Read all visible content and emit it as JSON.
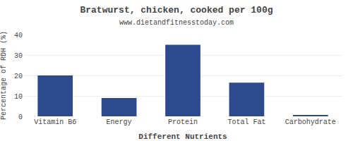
{
  "chart_data": {
    "type": "bar",
    "title": "Bratwurst, chicken, cooked per 100g",
    "subtitle": "www.dietandfitnesstoday.com",
    "xlabel": "Different Nutrients",
    "ylabel": "Percentage of RDH (%)",
    "categories": [
      "Vitamin B6",
      "Energy",
      "Protein",
      "Total Fat",
      "Carbohydrate"
    ],
    "values": [
      20,
      9,
      35,
      16.5,
      0.5
    ],
    "color": "#2e4a8e",
    "ylim": [
      0,
      40
    ],
    "yticks": [
      0,
      10,
      20,
      30,
      40
    ],
    "grid": true
  }
}
